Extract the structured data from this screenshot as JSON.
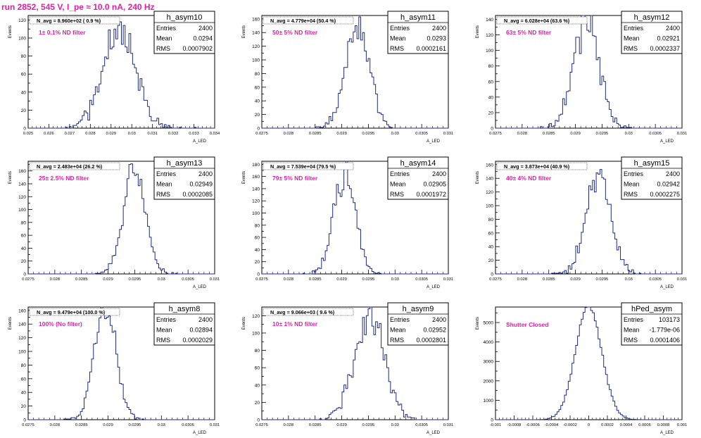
{
  "header": {
    "title": "run 2852,   545 V, I_pe ≈ 10.0 nA, 240 Hz"
  },
  "colors": {
    "accent": "#e61ea0",
    "histogram": "#1c2a8c",
    "axis": "#000000"
  },
  "chart_data": [
    {
      "type": "bar",
      "name": "h_asym10",
      "title": "h_asym10",
      "navg_label": "N_avg = 8.960e+02 ( 0.9 %)",
      "filter_label": "1± 0.1% ND filter",
      "stats": {
        "Entries": "2400",
        "Mean": "0.0294",
        "RMS": "0.0007902"
      },
      "ylabel": "Events",
      "xlabel": "A_LED",
      "xlim": [
        0.025,
        0.034
      ],
      "ylim": [
        0,
        125
      ],
      "xticks": [
        0.025,
        0.026,
        0.027,
        0.028,
        0.029,
        0.03,
        0.031,
        0.032,
        0.033,
        0.034
      ],
      "xtick_labels": [
        "0.025",
        "0.026",
        "0.027",
        "0.028",
        "0.029",
        "0.03",
        "0.031",
        "0.032",
        "0.033",
        "0.034"
      ],
      "yticks": [
        0,
        20,
        40,
        60,
        80,
        100,
        120
      ],
      "yminor": 10,
      "mean": 0.0294,
      "rms": 0.0007902,
      "entries": 2400,
      "nbins": 100,
      "seed": 11
    },
    {
      "type": "bar",
      "name": "h_asym11",
      "title": "h_asym11",
      "navg_label": "N_avg = 4.779e+04 (50.4 %)",
      "filter_label": "50± 5% ND filter",
      "stats": {
        "Entries": "2400",
        "Mean": "0.0293",
        "RMS": "0.0002161"
      },
      "ylabel": "Events",
      "xlabel": "A_LED",
      "xlim": [
        0.0275,
        0.031
      ],
      "ylim": [
        0,
        165
      ],
      "xticks": [
        0.0275,
        0.028,
        0.0285,
        0.029,
        0.0295,
        0.03,
        0.0305,
        0.031
      ],
      "xtick_labels": [
        "0.0275",
        "0.028",
        "0.0285",
        "0.029",
        "0.0295",
        "0.03",
        "0.0305",
        "0.031"
      ],
      "yticks": [
        0,
        20,
        40,
        60,
        80,
        100,
        120,
        140,
        160
      ],
      "yminor": 10,
      "mean": 0.0293,
      "rms": 0.0002161,
      "entries": 2400,
      "nbins": 100,
      "seed": 22
    },
    {
      "type": "bar",
      "name": "h_asym12",
      "title": "h_asym12",
      "navg_label": "N_avg = 6.028e+04 (63.6 %)",
      "filter_label": "63± 5% ND filter",
      "stats": {
        "Entries": "2400",
        "Mean": "0.02921",
        "RMS": "0.0002337"
      },
      "ylabel": "Events",
      "xlabel": "A_LED",
      "xlim": [
        0.0275,
        0.031
      ],
      "ylim": [
        0,
        145
      ],
      "xticks": [
        0.0275,
        0.028,
        0.0285,
        0.029,
        0.0295,
        0.03,
        0.0305,
        0.031
      ],
      "xtick_labels": [
        "0.0275",
        "0.028",
        "0.0285",
        "0.029",
        "0.0295",
        "0.03",
        "0.0305",
        "0.031"
      ],
      "yticks": [
        0,
        20,
        40,
        60,
        80,
        100,
        120,
        140
      ],
      "yminor": 10,
      "mean": 0.02921,
      "rms": 0.0002337,
      "entries": 2400,
      "nbins": 100,
      "seed": 33
    },
    {
      "type": "bar",
      "name": "h_asym13",
      "title": "h_asym13",
      "navg_label": "N_avg = 2.483e+04 (26.2 %)",
      "filter_label": "25± 2.5% ND filter",
      "stats": {
        "Entries": "2400",
        "Mean": "0.02949",
        "RMS": "0.0002085"
      },
      "ylabel": "Events",
      "xlabel": "A_LED",
      "xlim": [
        0.0275,
        0.031
      ],
      "ylim": [
        0,
        175
      ],
      "xticks": [
        0.0275,
        0.028,
        0.0285,
        0.029,
        0.0295,
        0.03,
        0.0305,
        0.031
      ],
      "xtick_labels": [
        "0.0275",
        "0.028",
        "0.0285",
        "0.029",
        "0.0295",
        "0.03",
        "0.0305",
        "0.031"
      ],
      "yticks": [
        0,
        20,
        40,
        60,
        80,
        100,
        120,
        140,
        160
      ],
      "yminor": 10,
      "mean": 0.02949,
      "rms": 0.0002085,
      "entries": 2400,
      "nbins": 100,
      "seed": 44
    },
    {
      "type": "bar",
      "name": "h_asym14",
      "title": "h_asym14",
      "navg_label": "N_avg = 7.539e+04 (79.5 %)",
      "filter_label": "79± 5% ND filter",
      "stats": {
        "Entries": "2400",
        "Mean": "0.02905",
        "RMS": "0.0001972"
      },
      "ylabel": "Events",
      "xlabel": "A_LED",
      "xlim": [
        0.0275,
        0.031
      ],
      "ylim": [
        0,
        185
      ],
      "xticks": [
        0.0275,
        0.028,
        0.0285,
        0.029,
        0.0295,
        0.03,
        0.0305,
        0.031
      ],
      "xtick_labels": [
        "0.0275",
        "0.028",
        "0.0285",
        "0.029",
        "0.0295",
        "0.03",
        "0.0305",
        "0.031"
      ],
      "yticks": [
        0,
        20,
        40,
        60,
        80,
        100,
        120,
        140,
        160,
        180
      ],
      "yminor": 10,
      "mean": 0.02905,
      "rms": 0.0001972,
      "entries": 2400,
      "nbins": 100,
      "seed": 55
    },
    {
      "type": "bar",
      "name": "h_asym15",
      "title": "h_asym15",
      "navg_label": "N_avg = 3.873e+04 (40.9 %)",
      "filter_label": "40± 4% ND filter",
      "stats": {
        "Entries": "2400",
        "Mean": "0.02942",
        "RMS": "0.0002275"
      },
      "ylabel": "Events",
      "xlabel": "A_LED",
      "xlim": [
        0.0275,
        0.031
      ],
      "ylim": [
        0,
        165
      ],
      "xticks": [
        0.0275,
        0.028,
        0.0285,
        0.029,
        0.0295,
        0.03,
        0.0305,
        0.031
      ],
      "xtick_labels": [
        "0.0275",
        "0.028",
        "0.0285",
        "0.029",
        "0.0295",
        "0.03",
        "0.0305",
        "0.031"
      ],
      "yticks": [
        0,
        20,
        40,
        60,
        80,
        100,
        120,
        140,
        160
      ],
      "yminor": 10,
      "mean": 0.02942,
      "rms": 0.0002275,
      "entries": 2400,
      "nbins": 100,
      "seed": 66
    },
    {
      "type": "bar",
      "name": "h_asym8",
      "title": "h_asym8",
      "navg_label": "N_avg = 9.479e+04 (100.0 %)",
      "filter_label": "100% (No filter)",
      "stats": {
        "Entries": "2400",
        "Mean": "0.02894",
        "RMS": "0.0002029"
      },
      "ylabel": "Events",
      "xlabel": "A_LED",
      "xlim": [
        0.0275,
        0.031
      ],
      "ylim": [
        0,
        165
      ],
      "xticks": [
        0.0275,
        0.028,
        0.0285,
        0.029,
        0.0295,
        0.03,
        0.0305,
        0.031
      ],
      "xtick_labels": [
        "0.0275",
        "0.028",
        "0.0285",
        "0.029",
        "0.0295",
        "0.03",
        "0.0305",
        "0.031"
      ],
      "yticks": [
        0,
        20,
        40,
        60,
        80,
        100,
        120,
        140,
        160
      ],
      "yminor": 10,
      "mean": 0.02894,
      "rms": 0.0002029,
      "entries": 2400,
      "nbins": 100,
      "seed": 77
    },
    {
      "type": "bar",
      "name": "h_asym9",
      "title": "h_asym9",
      "navg_label": "N_avg = 9.066e+03 ( 9.6 %)",
      "filter_label": "10± 1% ND filter",
      "stats": {
        "Entries": "2400",
        "Mean": "0.02952",
        "RMS": "0.0002801"
      },
      "ylabel": "Events",
      "xlabel": "A_LED",
      "xlim": [
        0.0275,
        0.031
      ],
      "ylim": [
        0,
        130
      ],
      "xticks": [
        0.0275,
        0.028,
        0.0285,
        0.029,
        0.0295,
        0.03,
        0.0305,
        0.031
      ],
      "xtick_labels": [
        "0.0275",
        "0.028",
        "0.0285",
        "0.029",
        "0.0295",
        "0.03",
        "0.0305",
        "0.031"
      ],
      "yticks": [
        0,
        20,
        40,
        60,
        80,
        100,
        120
      ],
      "yminor": 10,
      "mean": 0.02952,
      "rms": 0.0002801,
      "entries": 2400,
      "nbins": 100,
      "seed": 88
    },
    {
      "type": "bar",
      "name": "hPed_asym",
      "title": "hPed_asym",
      "navg_label": "",
      "filter_label": "Shutter Closed",
      "stats": {
        "Entries": "103173",
        "Mean": "-1.779e-06",
        "RMS": "0.0001406"
      },
      "ylabel": "Events",
      "xlabel": "A_LED",
      "xlim": [
        -0.001,
        0.001
      ],
      "ylim": [
        0,
        5800
      ],
      "xticks": [
        -0.001,
        -0.0008,
        -0.0006,
        -0.0004,
        -0.0002,
        0,
        0.0002,
        0.0004,
        0.0006,
        0.0008,
        0.001
      ],
      "xtick_labels": [
        "-0.001",
        "-0.0008",
        "-0.0006",
        "-0.0004",
        "-0.0002",
        "0",
        "0.0002",
        "0.0004",
        "0.0006",
        "0.0008",
        "0.001"
      ],
      "yticks": [
        0,
        1000,
        2000,
        3000,
        4000,
        5000
      ],
      "yminor": 500,
      "mean": -1.779e-06,
      "rms": 0.0001406,
      "entries": 103173,
      "nbins": 100,
      "seed": 99
    }
  ]
}
